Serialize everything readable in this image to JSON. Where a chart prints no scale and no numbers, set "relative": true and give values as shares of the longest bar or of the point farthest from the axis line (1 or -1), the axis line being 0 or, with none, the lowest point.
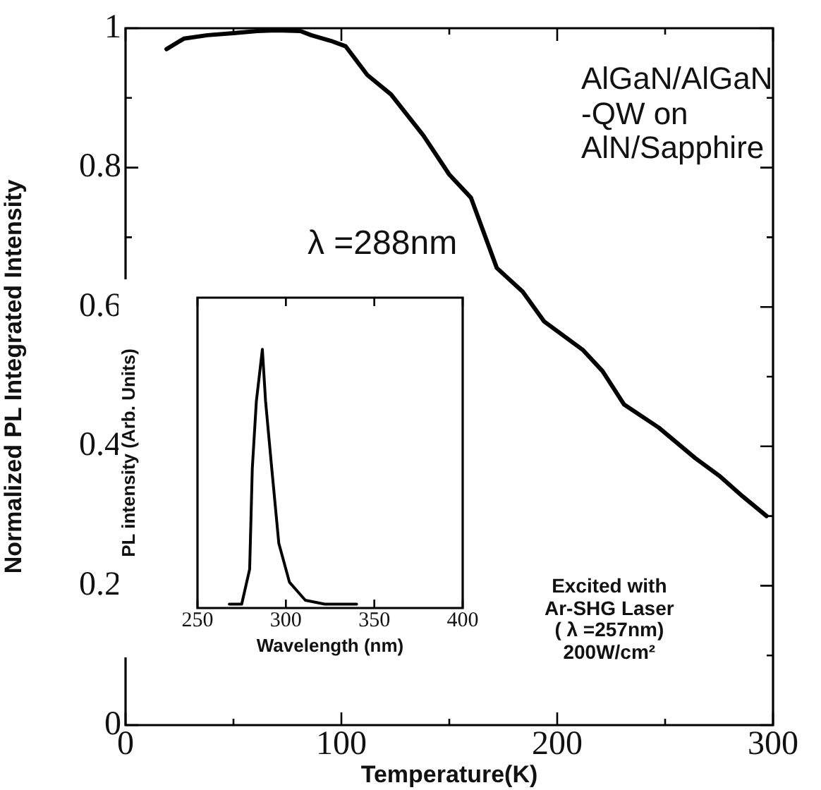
{
  "chart_data": [
    {
      "type": "line",
      "xlabel": "Temperature(K)",
      "ylabel": "Normalized PL Integrated Intensity",
      "x": [
        19,
        27,
        38,
        50,
        61,
        70,
        81,
        86,
        95,
        102,
        112,
        123,
        138,
        150,
        160,
        172,
        184,
        194,
        212,
        221,
        231,
        247,
        264,
        275,
        286,
        297
      ],
      "series": [
        {
          "color": "#000000",
          "values": [
            0.97,
            0.985,
            0.99,
            0.993,
            0.996,
            0.997,
            0.996,
            0.99,
            0.982,
            0.974,
            0.933,
            0.905,
            0.846,
            0.79,
            0.757,
            0.656,
            0.622,
            0.579,
            0.538,
            0.508,
            0.46,
            0.427,
            0.383,
            0.358,
            0.328,
            0.3
          ]
        }
      ],
      "xlim": [
        0,
        300
      ],
      "xticks": [
        0,
        {
          "value": 50,
          "label": null
        },
        100,
        {
          "value": 150,
          "label": null
        },
        200,
        {
          "value": 250,
          "label": null
        },
        300
      ],
      "ylim": [
        0,
        1
      ],
      "yticks": [
        0,
        {
          "value": 0.1,
          "label": null
        },
        0.2,
        {
          "value": 0.3,
          "label": null
        },
        0.4,
        {
          "value": 0.5,
          "label": null
        },
        0.6,
        {
          "value": 0.7,
          "label": null
        },
        0.8,
        {
          "value": 0.9,
          "label": null
        },
        1
      ],
      "marker": "none",
      "line_style": "solid",
      "legend": false,
      "grid": false,
      "annotations": [
        "AlGaN/AlGaN\n-QW on\nAlN/Sapphire",
        "λ =288nm",
        "Excited with\nAr-SHG Laser\n( λ =257nm)\n200W/cm²"
      ]
    },
    {
      "type": "line",
      "xlabel": "Wavelength (nm)",
      "ylabel": "PL intensity (Arb. Units)",
      "relative": true,
      "x": [
        268,
        275,
        279.5,
        281,
        283.3,
        286.7,
        288.5,
        292,
        296,
        302,
        311,
        322,
        340
      ],
      "series": [
        {
          "color": "#000000",
          "values": [
            0.015,
            0.015,
            0.15,
            0.54,
            0.8,
            1,
            0.8,
            0.54,
            0.25,
            0.1,
            0.03,
            0.015,
            0.015
          ]
        }
      ],
      "xlim": [
        250,
        400
      ],
      "xticks": [
        250,
        300,
        350,
        400
      ],
      "tick_labels": "x",
      "marker": "none",
      "line_style": "solid",
      "legend": false,
      "grid": false
    }
  ]
}
